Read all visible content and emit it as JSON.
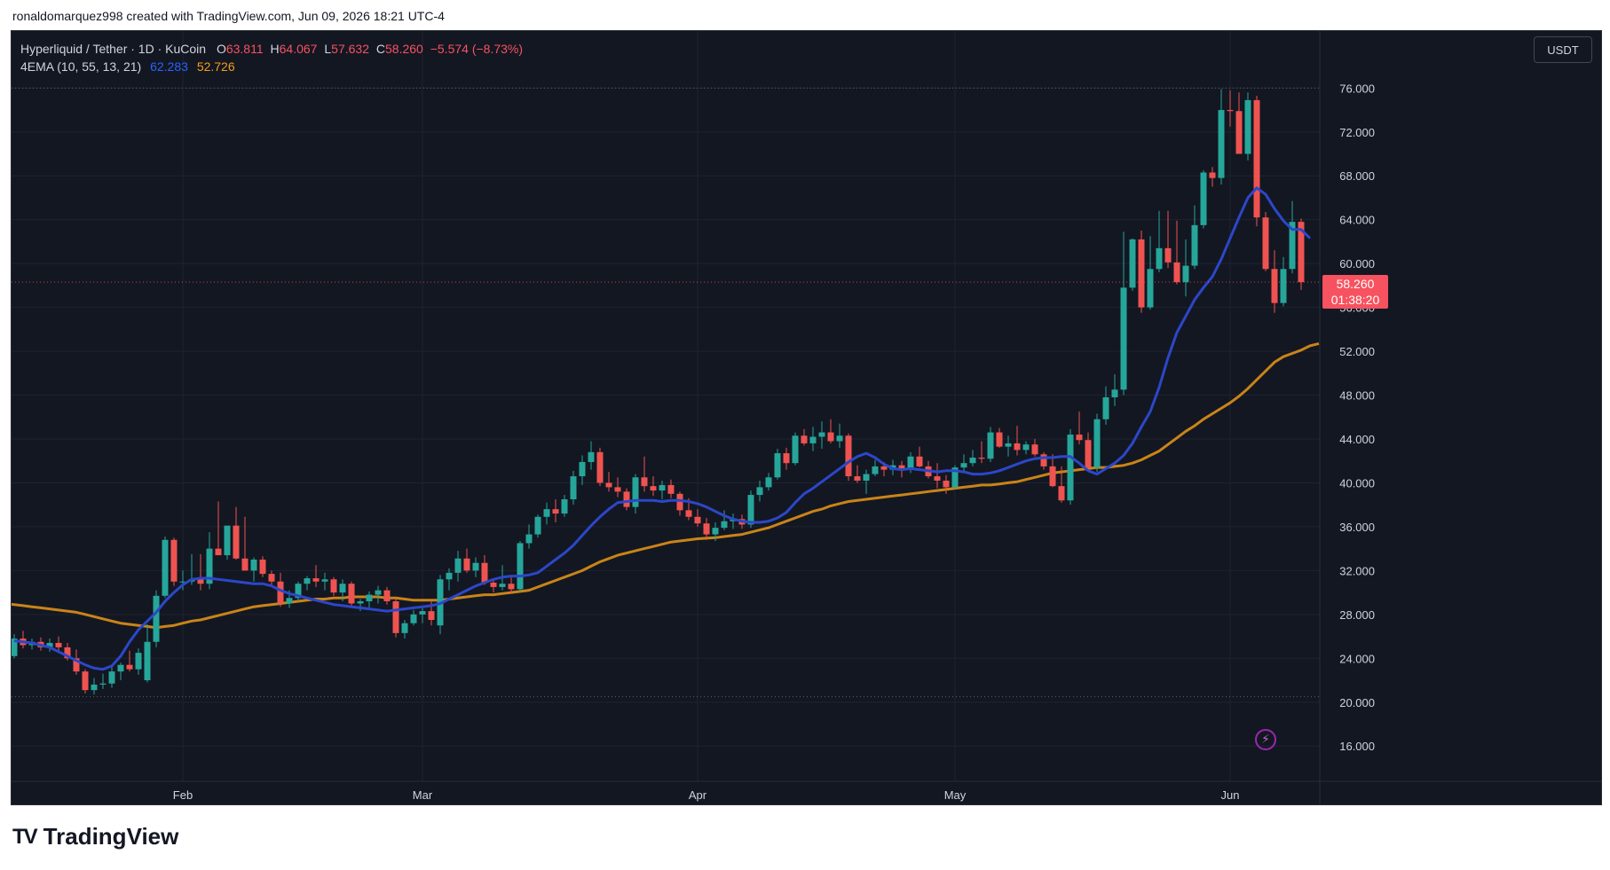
{
  "attribution": "ronaldomarquez998 created with TradingView.com, Jun 09, 2026 18:21 UTC-4",
  "legend": {
    "symbol": "Hyperliquid / Tether · 1D · KuCoin",
    "o_label": "O",
    "o_val": "63.811",
    "h_label": "H",
    "h_val": "64.067",
    "l_label": "L",
    "l_val": "57.632",
    "c_label": "C",
    "c_val": "58.260",
    "change": "−5.574 (−8.73%)",
    "ema_label": "4EMA (10, 55, 13, 21)",
    "ema_fast": "62.283",
    "ema_slow": "52.726"
  },
  "currency": "USDT",
  "last_price": {
    "price": "58.260",
    "countdown": "01:38:20"
  },
  "footer": {
    "logo_mark": "TV",
    "logo_text": "TradingView"
  },
  "colors": {
    "up": "#26a69a",
    "down": "#ef5350",
    "ema_fast": "#2c47c9",
    "ema_slow": "#c98418",
    "background": "#131722",
    "grid": "#1f2330",
    "text": "#d1d4dc"
  },
  "chart_data": {
    "type": "candlestick",
    "y_ticks": [
      "76.000",
      "72.000",
      "68.000",
      "64.000",
      "60.000",
      "56.000",
      "52.000",
      "48.000",
      "44.000",
      "40.000",
      "36.000",
      "32.000",
      "28.000",
      "24.000",
      "20.000",
      "16.000"
    ],
    "y_tick_values": [
      76,
      72,
      68,
      64,
      60,
      56,
      52,
      48,
      44,
      40,
      36,
      32,
      28,
      24,
      20,
      16
    ],
    "ylim": [
      14.4,
      81.2
    ],
    "x_ticks": [
      {
        "label": "Feb",
        "index": 19
      },
      {
        "label": "Mar",
        "index": 46
      },
      {
        "label": "Apr",
        "index": 77
      },
      {
        "label": "May",
        "index": 106
      },
      {
        "label": "Jun",
        "index": 137
      }
    ],
    "dotted_levels": [
      76.0,
      20.5
    ],
    "candles": [
      [
        24.2,
        26.2,
        24.0,
        25.8
      ],
      [
        25.8,
        26.5,
        24.9,
        25.2
      ],
      [
        25.2,
        25.8,
        24.8,
        25.5
      ],
      [
        25.5,
        25.9,
        24.7,
        25.0
      ],
      [
        25.0,
        25.8,
        24.6,
        25.4
      ],
      [
        25.4,
        26.0,
        24.5,
        25.0
      ],
      [
        25.0,
        25.4,
        23.8,
        24.0
      ],
      [
        24.0,
        24.8,
        22.5,
        22.8
      ],
      [
        22.8,
        23.0,
        20.8,
        21.1
      ],
      [
        21.1,
        22.2,
        20.7,
        21.6
      ],
      [
        21.6,
        22.6,
        21.2,
        21.7
      ],
      [
        21.7,
        23.4,
        21.3,
        22.8
      ],
      [
        22.8,
        23.6,
        22.0,
        23.4
      ],
      [
        23.4,
        24.7,
        22.8,
        23.0
      ],
      [
        23.0,
        24.9,
        22.5,
        24.5
      ],
      [
        22.0,
        27.1,
        21.8,
        25.5
      ],
      [
        25.5,
        30.2,
        25.0,
        29.7
      ],
      [
        29.7,
        35.1,
        29.5,
        34.8
      ],
      [
        34.8,
        35.0,
        30.6,
        31.0
      ],
      [
        31.0,
        32.0,
        30.2,
        31.0
      ],
      [
        31.0,
        33.5,
        30.7,
        31.2
      ],
      [
        31.2,
        33.5,
        30.2,
        30.8
      ],
      [
        30.8,
        35.5,
        30.3,
        34.0
      ],
      [
        34.0,
        38.3,
        33.5,
        33.4
      ],
      [
        33.4,
        35.6,
        33.0,
        36.1
      ],
      [
        36.1,
        37.8,
        33.0,
        33.1
      ],
      [
        33.1,
        36.9,
        32.0,
        32.0
      ],
      [
        32.0,
        33.2,
        31.0,
        33.0
      ],
      [
        33.0,
        33.3,
        31.4,
        31.7
      ],
      [
        31.7,
        32.0,
        30.6,
        31.0
      ],
      [
        31.0,
        31.8,
        28.7,
        29.0
      ],
      [
        29.0,
        30.2,
        28.6,
        29.5
      ],
      [
        29.5,
        31.0,
        29.2,
        30.8
      ],
      [
        30.8,
        31.5,
        30.2,
        31.3
      ],
      [
        31.3,
        32.5,
        30.5,
        31.0
      ],
      [
        31.0,
        31.8,
        30.2,
        31.2
      ],
      [
        31.2,
        31.4,
        29.7,
        30.0
      ],
      [
        30.0,
        31.2,
        29.2,
        30.8
      ],
      [
        30.8,
        31.0,
        28.6,
        29.0
      ],
      [
        29.0,
        29.4,
        28.3,
        29.2
      ],
      [
        29.2,
        30.1,
        28.5,
        29.8
      ],
      [
        29.8,
        30.6,
        29.0,
        30.2
      ],
      [
        30.2,
        30.5,
        28.9,
        29.2
      ],
      [
        29.2,
        29.5,
        25.9,
        26.3
      ],
      [
        26.3,
        27.5,
        25.8,
        27.2
      ],
      [
        27.2,
        28.4,
        27.0,
        28.0
      ],
      [
        28.0,
        28.7,
        27.2,
        28.3
      ],
      [
        28.3,
        29.3,
        27.0,
        27.5
      ],
      [
        27.0,
        31.6,
        26.2,
        31.2
      ],
      [
        31.2,
        32.2,
        30.2,
        31.8
      ],
      [
        31.8,
        33.8,
        31.0,
        33.1
      ],
      [
        33.1,
        34.0,
        31.8,
        32.0
      ],
      [
        32.0,
        33.2,
        31.4,
        32.7
      ],
      [
        32.7,
        33.4,
        30.7,
        30.9
      ],
      [
        30.9,
        31.2,
        30.0,
        30.5
      ],
      [
        30.5,
        32.5,
        30.2,
        30.8
      ],
      [
        30.8,
        31.6,
        29.9,
        30.3
      ],
      [
        30.3,
        34.7,
        30.1,
        34.5
      ],
      [
        34.5,
        36.2,
        34.0,
        35.3
      ],
      [
        35.3,
        37.1,
        35.0,
        36.9
      ],
      [
        36.9,
        38.2,
        36.2,
        37.6
      ],
      [
        37.6,
        38.5,
        36.4,
        37.2
      ],
      [
        37.2,
        38.9,
        36.9,
        38.5
      ],
      [
        38.5,
        41.1,
        38.0,
        40.6
      ],
      [
        40.6,
        42.5,
        39.8,
        41.9
      ],
      [
        41.9,
        43.8,
        41.2,
        42.8
      ],
      [
        42.8,
        43.2,
        39.7,
        40.0
      ],
      [
        40.0,
        41.0,
        39.2,
        39.6
      ],
      [
        39.6,
        40.5,
        38.7,
        39.2
      ],
      [
        39.2,
        39.5,
        37.5,
        37.8
      ],
      [
        37.8,
        40.8,
        37.2,
        40.5
      ],
      [
        40.5,
        42.4,
        39.2,
        39.7
      ],
      [
        39.7,
        40.6,
        38.8,
        39.3
      ],
      [
        39.3,
        40.2,
        38.5,
        39.8
      ],
      [
        39.8,
        40.3,
        38.6,
        39.0
      ],
      [
        39.0,
        39.2,
        37.0,
        37.5
      ],
      [
        37.5,
        38.6,
        36.6,
        36.9
      ],
      [
        36.9,
        37.6,
        36.0,
        36.3
      ],
      [
        36.3,
        36.8,
        34.8,
        35.3
      ],
      [
        35.3,
        36.4,
        34.7,
        35.9
      ],
      [
        35.9,
        37.5,
        35.7,
        36.5
      ],
      [
        36.5,
        37.2,
        35.8,
        36.7
      ],
      [
        36.7,
        37.1,
        35.8,
        36.2
      ],
      [
        36.2,
        39.3,
        35.9,
        38.9
      ],
      [
        38.9,
        40.2,
        38.3,
        39.6
      ],
      [
        39.6,
        40.9,
        39.3,
        40.5
      ],
      [
        40.5,
        43.1,
        40.3,
        42.7
      ],
      [
        42.7,
        43.2,
        41.2,
        41.8
      ],
      [
        41.8,
        44.6,
        41.6,
        44.3
      ],
      [
        44.3,
        44.9,
        43.4,
        43.6
      ],
      [
        43.6,
        45.1,
        42.9,
        44.2
      ],
      [
        44.2,
        45.6,
        43.1,
        44.6
      ],
      [
        44.6,
        45.8,
        43.6,
        43.8
      ],
      [
        43.8,
        45.4,
        43.2,
        44.3
      ],
      [
        44.3,
        44.5,
        40.2,
        40.6
      ],
      [
        40.6,
        41.6,
        40.0,
        40.2
      ],
      [
        40.2,
        41.2,
        39.0,
        40.8
      ],
      [
        40.8,
        42.1,
        40.6,
        41.5
      ],
      [
        41.5,
        41.9,
        40.6,
        41.2
      ],
      [
        41.2,
        42.1,
        40.7,
        41.6
      ],
      [
        41.6,
        42.0,
        40.5,
        41.2
      ],
      [
        41.2,
        42.8,
        40.9,
        42.4
      ],
      [
        42.4,
        43.3,
        41.4,
        41.5
      ],
      [
        41.5,
        42.0,
        40.4,
        40.6
      ],
      [
        40.6,
        41.8,
        39.5,
        40.2
      ],
      [
        40.2,
        40.7,
        39.0,
        39.6
      ],
      [
        39.6,
        41.6,
        39.4,
        41.4
      ],
      [
        41.4,
        42.6,
        41.0,
        41.8
      ],
      [
        41.8,
        43.0,
        41.5,
        42.3
      ],
      [
        42.3,
        43.8,
        41.8,
        42.2
      ],
      [
        42.2,
        45.1,
        41.9,
        44.6
      ],
      [
        44.6,
        45.0,
        43.2,
        43.3
      ],
      [
        43.3,
        44.3,
        42.4,
        43.6
      ],
      [
        43.6,
        45.2,
        42.5,
        43.0
      ],
      [
        43.0,
        43.8,
        42.6,
        43.5
      ],
      [
        43.5,
        44.0,
        42.4,
        42.6
      ],
      [
        42.6,
        42.8,
        41.2,
        41.5
      ],
      [
        41.5,
        42.6,
        39.6,
        39.7
      ],
      [
        39.7,
        41.5,
        38.2,
        38.4
      ],
      [
        38.4,
        44.9,
        38.0,
        44.4
      ],
      [
        44.4,
        46.5,
        43.5,
        43.9
      ],
      [
        43.9,
        44.6,
        41.1,
        41.4
      ],
      [
        41.4,
        46.3,
        41.0,
        45.8
      ],
      [
        45.8,
        48.8,
        45.3,
        47.8
      ],
      [
        47.8,
        49.9,
        47.0,
        48.5
      ],
      [
        48.5,
        62.9,
        48.0,
        57.8
      ],
      [
        57.8,
        62.3,
        57.5,
        62.2
      ],
      [
        62.2,
        63.0,
        55.5,
        56.0
      ],
      [
        56.0,
        62.5,
        55.8,
        59.5
      ],
      [
        59.5,
        64.8,
        59.2,
        61.4
      ],
      [
        61.4,
        64.8,
        59.6,
        60.1
      ],
      [
        60.1,
        63.9,
        58.1,
        58.3
      ],
      [
        58.3,
        62.2,
        57.0,
        59.8
      ],
      [
        59.8,
        65.3,
        59.5,
        63.5
      ],
      [
        63.5,
        68.5,
        63.2,
        68.3
      ],
      [
        68.3,
        68.8,
        67.0,
        67.8
      ],
      [
        67.8,
        75.9,
        67.2,
        74.0
      ],
      [
        74.0,
        75.8,
        72.5,
        73.9
      ],
      [
        73.9,
        75.6,
        70.4,
        70.0
      ],
      [
        70.0,
        75.6,
        69.4,
        74.9
      ],
      [
        74.9,
        75.3,
        63.4,
        64.2
      ],
      [
        64.2,
        64.7,
        59.3,
        59.5
      ],
      [
        59.5,
        61.2,
        55.5,
        56.4
      ],
      [
        56.4,
        60.6,
        56.1,
        59.5
      ],
      [
        59.5,
        65.7,
        59.1,
        63.8
      ],
      [
        63.8,
        64.1,
        57.6,
        58.3
      ]
    ],
    "series": [
      {
        "name": "EMA 10",
        "start_index": 0,
        "values": [
          25.6,
          25.5,
          25.4,
          25.2,
          25.0,
          24.6,
          24.2,
          23.8,
          23.4,
          23.1,
          23.0,
          23.3,
          24.2,
          25.5,
          26.6,
          27.4,
          28.2,
          29.2,
          30.0,
          30.7,
          31.2,
          31.3,
          31.3,
          31.2,
          31.1,
          31.0,
          30.9,
          30.8,
          30.8,
          30.6,
          30.2,
          29.9,
          29.7,
          29.5,
          29.3,
          29.1,
          28.9,
          28.8,
          28.7,
          28.6,
          28.5,
          28.4,
          28.3,
          28.4,
          28.5,
          28.6,
          28.7,
          28.8,
          29.0,
          29.4,
          29.8,
          30.2,
          30.6,
          30.9,
          31.2,
          31.4,
          31.5,
          31.5,
          31.6,
          31.8,
          32.4,
          33.0,
          33.6,
          34.3,
          35.2,
          36.1,
          36.9,
          37.6,
          38.2,
          38.3,
          38.4,
          38.4,
          38.4,
          38.3,
          38.4,
          38.4,
          38.3,
          38.1,
          37.8,
          37.4,
          37.0,
          36.7,
          36.5,
          36.4,
          36.4,
          36.5,
          36.8,
          37.3,
          38.2,
          39.0,
          39.5,
          40.1,
          40.7,
          41.3,
          41.9,
          42.4,
          42.7,
          42.3,
          41.7,
          41.3,
          41.2,
          41.3,
          41.2,
          41.1,
          41.0,
          41.1,
          41.1,
          41.0,
          40.8,
          40.8,
          40.9,
          41.1,
          41.4,
          41.7,
          42.0,
          42.2,
          42.3,
          42.3,
          42.4,
          42.4,
          41.8,
          41.1,
          40.8,
          41.3,
          41.8,
          42.5,
          43.6,
          45.1,
          46.5,
          48.7,
          51.4,
          53.7,
          55.2,
          56.7,
          57.8,
          58.8,
          60.4,
          62.3,
          64.2,
          66.0,
          66.9,
          66.3,
          65.0,
          63.9,
          63.1,
          63.1,
          62.3
        ]
      },
      {
        "name": "EMA 55",
        "start_index": -1,
        "values": [
          29.0,
          28.9,
          28.8,
          28.7,
          28.6,
          28.5,
          28.4,
          28.3,
          28.2,
          28.0,
          27.8,
          27.6,
          27.4,
          27.2,
          27.1,
          27.0,
          26.9,
          26.8,
          26.9,
          27.0,
          27.2,
          27.4,
          27.5,
          27.7,
          27.9,
          28.1,
          28.3,
          28.5,
          28.7,
          28.8,
          28.9,
          29.0,
          29.1,
          29.2,
          29.3,
          29.4,
          29.4,
          29.5,
          29.5,
          29.6,
          29.6,
          29.6,
          29.6,
          29.5,
          29.5,
          29.4,
          29.3,
          29.3,
          29.3,
          29.3,
          29.4,
          29.5,
          29.6,
          29.7,
          29.8,
          29.8,
          29.9,
          30.0,
          30.1,
          30.2,
          30.5,
          30.8,
          31.1,
          31.4,
          31.7,
          32.0,
          32.4,
          32.8,
          33.1,
          33.4,
          33.6,
          33.8,
          34.0,
          34.2,
          34.4,
          34.6,
          34.7,
          34.8,
          34.9,
          34.95,
          35.0,
          35.1,
          35.2,
          35.3,
          35.5,
          35.7,
          35.9,
          36.2,
          36.5,
          36.8,
          37.1,
          37.4,
          37.6,
          37.9,
          38.1,
          38.3,
          38.4,
          38.5,
          38.6,
          38.7,
          38.8,
          38.9,
          39.0,
          39.1,
          39.2,
          39.3,
          39.4,
          39.5,
          39.6,
          39.7,
          39.8,
          39.8,
          39.9,
          40.0,
          40.1,
          40.3,
          40.5,
          40.7,
          40.9,
          41.0,
          41.1,
          41.2,
          41.3,
          41.4,
          41.4,
          41.5,
          41.6,
          41.8,
          42.1,
          42.5,
          42.9,
          43.5,
          44.1,
          44.7,
          45.2,
          45.8,
          46.3,
          46.8,
          47.3,
          47.9,
          48.6,
          49.4,
          50.2,
          51.0,
          51.5,
          51.8,
          52.1,
          52.5,
          52.7
        ]
      }
    ]
  }
}
